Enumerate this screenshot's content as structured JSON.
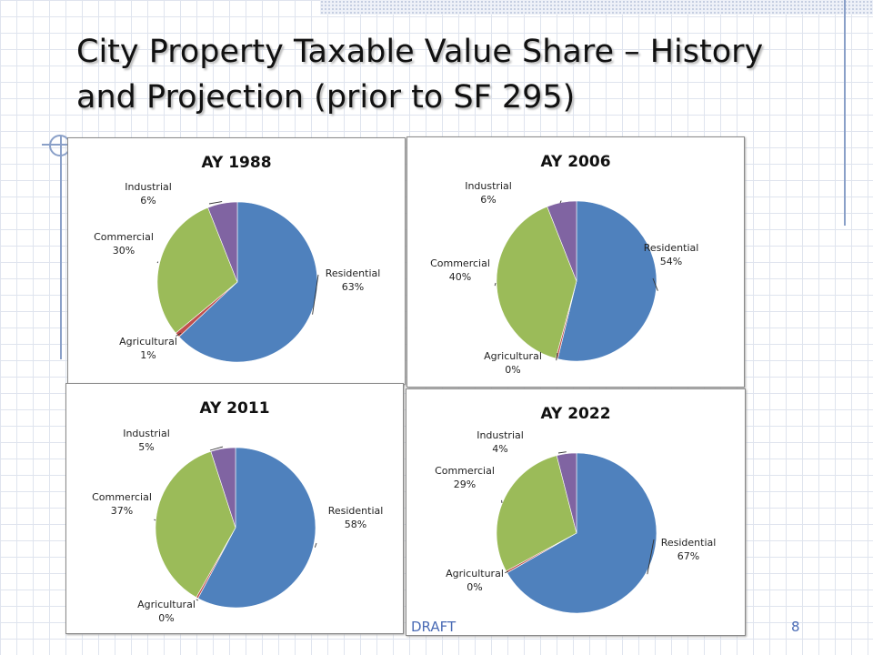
{
  "slide": {
    "title": "City Property Taxable Value Share – History and Projection (prior to SF 295)",
    "footer_center": "DRAFT",
    "page_number": "8"
  },
  "colors": {
    "Residential": "#4f81bd",
    "Agricultural": "#c0504d",
    "Commercial": "#9bbb59",
    "Industrial": "#8064a2"
  },
  "chart_data": [
    {
      "type": "pie",
      "title": "AY 1988",
      "slices": [
        {
          "label": "Residential",
          "value": 63,
          "display": "63%"
        },
        {
          "label": "Agricultural",
          "value": 1,
          "display": "1%"
        },
        {
          "label": "Commercial",
          "value": 30,
          "display": "30%"
        },
        {
          "label": "Industrial",
          "value": 6,
          "display": "6%"
        }
      ]
    },
    {
      "type": "pie",
      "title": "AY 2006",
      "slices": [
        {
          "label": "Residential",
          "value": 54,
          "display": "54%"
        },
        {
          "label": "Agricultural",
          "value": 0.4,
          "display": "0%"
        },
        {
          "label": "Commercial",
          "value": 40,
          "display": "40%"
        },
        {
          "label": "Industrial",
          "value": 6,
          "display": "6%"
        }
      ]
    },
    {
      "type": "pie",
      "title": "AY 2011",
      "slices": [
        {
          "label": "Residential",
          "value": 58,
          "display": "58%"
        },
        {
          "label": "Agricultural",
          "value": 0.4,
          "display": "0%"
        },
        {
          "label": "Commercial",
          "value": 37,
          "display": "37%"
        },
        {
          "label": "Industrial",
          "value": 5,
          "display": "5%"
        }
      ]
    },
    {
      "type": "pie",
      "title": "AY 2022",
      "slices": [
        {
          "label": "Residential",
          "value": 67,
          "display": "67%"
        },
        {
          "label": "Agricultural",
          "value": 0.4,
          "display": "0%"
        },
        {
          "label": "Commercial",
          "value": 29,
          "display": "29%"
        },
        {
          "label": "Industrial",
          "value": 4,
          "display": "4%"
        }
      ]
    }
  ]
}
